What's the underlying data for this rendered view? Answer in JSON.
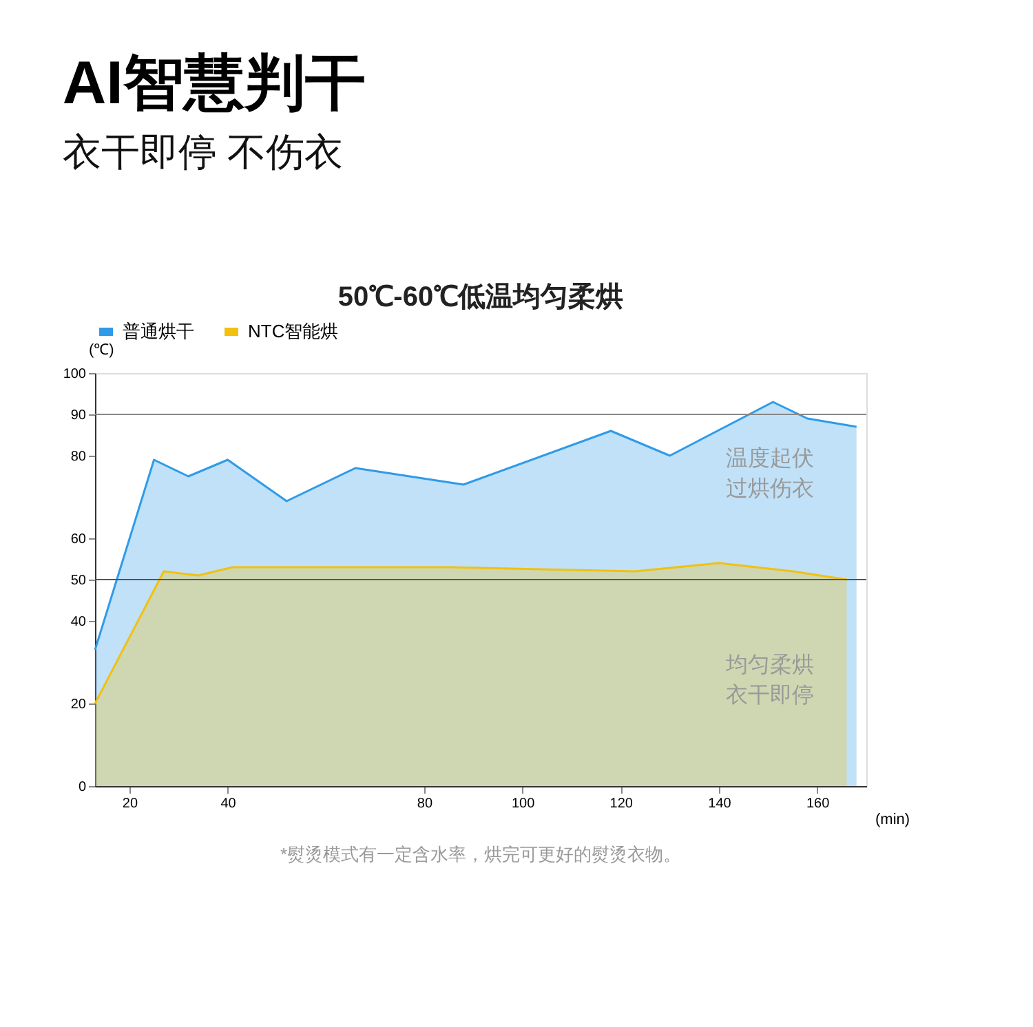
{
  "chart_data": {
    "type": "area",
    "title": "AI智慧判干",
    "subtitle": "衣干即停 不伤衣",
    "xlabel": "(min)",
    "ylabel": "(℃)",
    "series": [
      {
        "name": "普通烘干",
        "color": "#2f9be8",
        "x": [
          13,
          25,
          32,
          40,
          52,
          66,
          88,
          118,
          130,
          151,
          158,
          168
        ],
        "values": [
          33,
          79,
          75,
          79,
          69,
          77,
          73,
          86,
          80,
          93,
          89,
          87
        ]
      },
      {
        "name": "NTC智能烘",
        "color": "#f2c00f",
        "x": [
          13,
          27,
          34,
          41,
          85,
          123,
          140,
          155,
          166
        ],
        "values": [
          20,
          52,
          51,
          53,
          53,
          52,
          54,
          52,
          50
        ]
      }
    ],
    "xlim": [
      13,
      170
    ],
    "ylim": [
      0,
      100
    ],
    "xticks": [
      20,
      40,
      80,
      100,
      120,
      140,
      160
    ],
    "yticks": [
      0,
      20,
      40,
      50,
      60,
      80,
      90,
      100
    ],
    "ref_lines": [
      {
        "axis": "y",
        "value": 90,
        "label": null,
        "color": "#888888"
      },
      {
        "axis": "y",
        "value": 50,
        "label": null,
        "color": "#555555"
      }
    ],
    "annotations": [
      "50℃-60℃低温均匀柔烘",
      "*熨烫模式有一定含水率，烘完可更好的熨烫衣物。",
      "温度起伏",
      "过烘伤衣",
      "均匀柔烘",
      "衣干即停"
    ],
    "grid": false,
    "legend": "top",
    "marker": "none",
    "line_style": "solid"
  }
}
